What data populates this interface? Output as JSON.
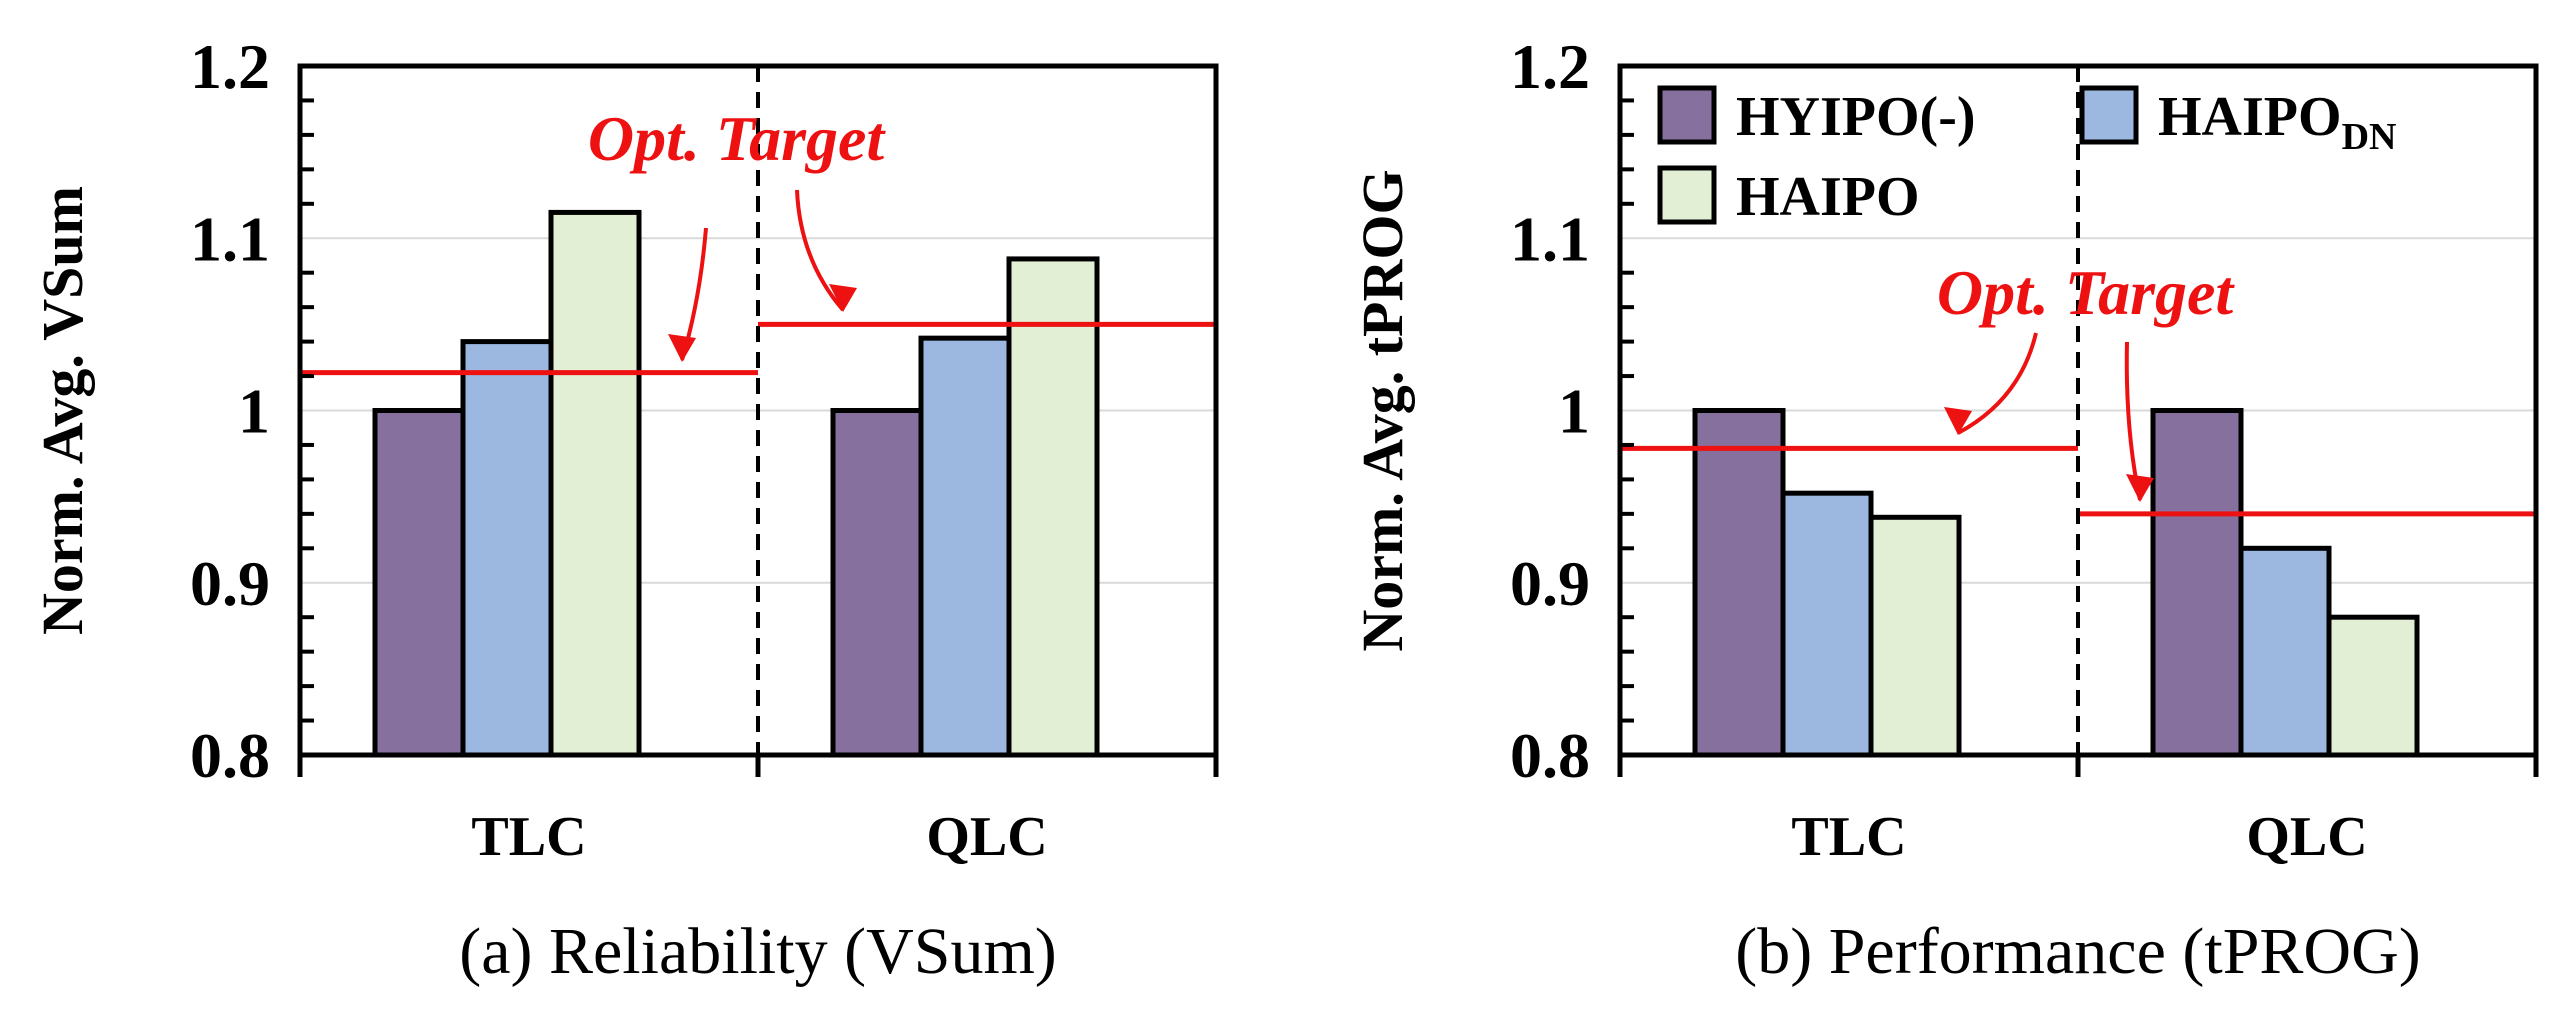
{
  "legend": [
    {
      "label": "HYIPO(-)",
      "color": "#86709e"
    },
    {
      "label": "HAIPO",
      "sub": "DN",
      "color": "#9cb7e0"
    },
    {
      "label": "HAIPO",
      "color": "#e3efd5"
    }
  ],
  "target_color": "#ee1111",
  "chart_data": [
    {
      "type": "bar",
      "caption": "(a) Reliability (VSum)",
      "ylabel": "Norm. Avg. VSum",
      "ylim": [
        0.8,
        1.2
      ],
      "yticks": [
        "0.8",
        "0.9",
        "1",
        "1.1",
        "1.2"
      ],
      "categories": [
        "TLC",
        "QLC"
      ],
      "series": [
        {
          "name": "HYIPO(-)",
          "values": [
            1.0,
            1.0
          ]
        },
        {
          "name": "HAIPO_DN",
          "values": [
            1.04,
            1.042
          ]
        },
        {
          "name": "HAIPO",
          "values": [
            1.115,
            1.088
          ]
        }
      ],
      "targets": [
        1.022,
        1.05
      ],
      "annotation": "Opt. Target"
    },
    {
      "type": "bar",
      "caption": "(b) Performance (tPROG)",
      "ylabel": "Norm. Avg. tPROG",
      "ylim": [
        0.8,
        1.2
      ],
      "yticks": [
        "0.8",
        "0.9",
        "1",
        "1.1",
        "1.2"
      ],
      "categories": [
        "TLC",
        "QLC"
      ],
      "series": [
        {
          "name": "HYIPO(-)",
          "values": [
            1.0,
            1.0
          ]
        },
        {
          "name": "HAIPO_DN",
          "values": [
            0.952,
            0.92
          ]
        },
        {
          "name": "HAIPO",
          "values": [
            0.938,
            0.88
          ]
        }
      ],
      "targets": [
        0.978,
        0.94
      ],
      "annotation": "Opt. Target"
    }
  ]
}
